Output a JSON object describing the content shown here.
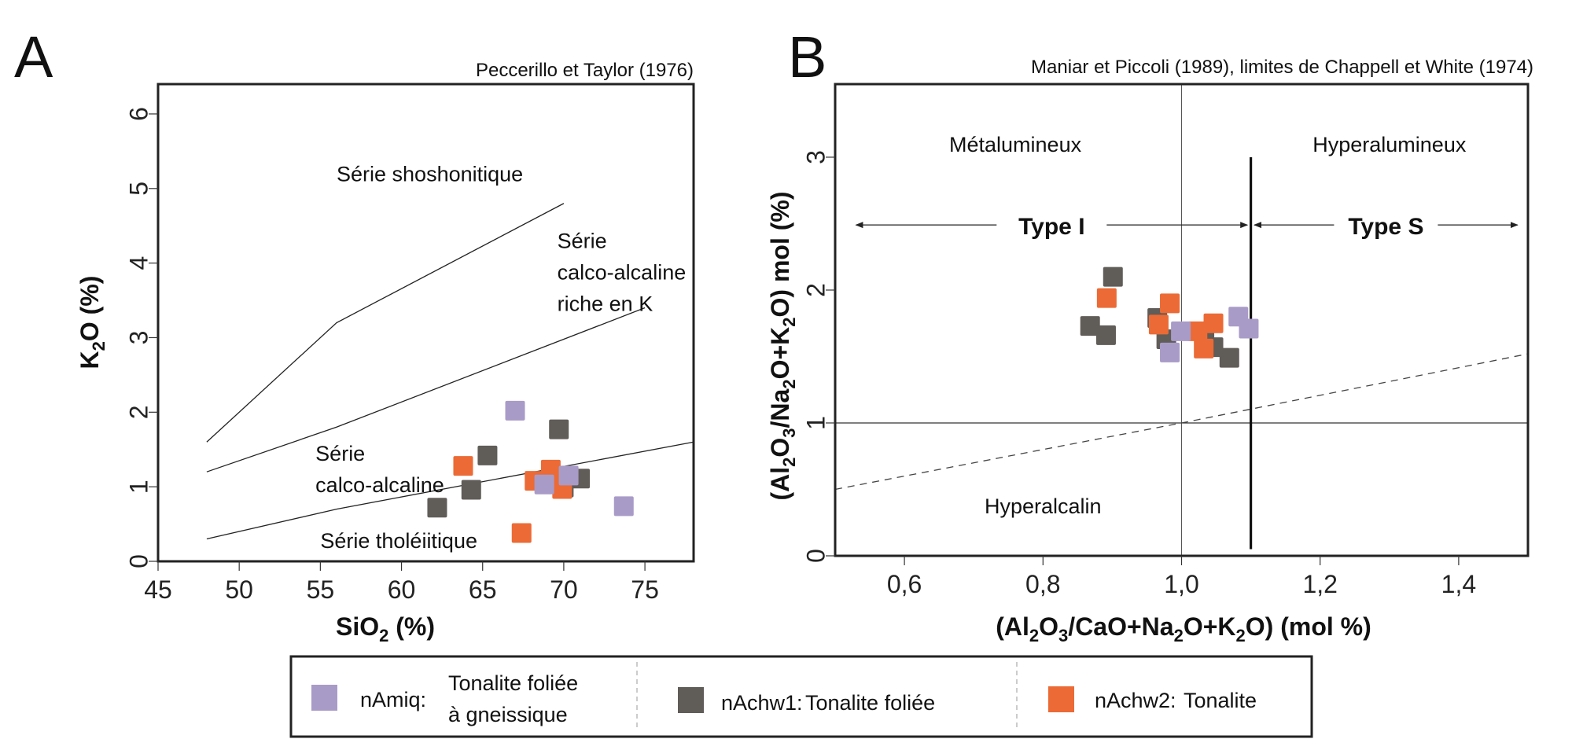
{
  "legend": {
    "items": [
      {
        "key": "nAmiq",
        "label_code": "nAmiq:",
        "label_lines": [
          "Tonalite foliée",
          "à gneissique"
        ],
        "color": "#A99BC8"
      },
      {
        "key": "nAchw1",
        "label_code": "nAchw1:",
        "label_lines": [
          "Tonalite foliée"
        ],
        "color": "#605C58"
      },
      {
        "key": "nAchw2",
        "label_code": "nAchw2:",
        "label_lines": [
          "Tonalite"
        ],
        "color": "#EC6A35"
      }
    ]
  },
  "chart_data": [
    {
      "panel": "A",
      "type": "scatter",
      "title": "Peccerillo et Taylor (1976)",
      "xlabel": "SiO2 (%)",
      "ylabel": "K2O (%)",
      "xlim": [
        45,
        78
      ],
      "ylim": [
        0,
        6.4
      ],
      "xticks": [
        45,
        50,
        55,
        60,
        65,
        70,
        75
      ],
      "yticks": [
        0,
        1,
        2,
        3,
        4,
        5,
        6
      ],
      "grid": false,
      "boundaries": [
        {
          "name": "shoshonitic-boundary",
          "points": [
            [
              48,
              1.6
            ],
            [
              56,
              3.2
            ],
            [
              70,
              4.8
            ]
          ]
        },
        {
          "name": "high-k-calc-alkaline-boundary",
          "points": [
            [
              48,
              1.2
            ],
            [
              56,
              1.8
            ],
            [
              75,
              3.4
            ]
          ]
        },
        {
          "name": "calc-alkaline-boundary",
          "points": [
            [
              48,
              0.3
            ],
            [
              56,
              0.7
            ],
            [
              78,
              1.6
            ]
          ]
        }
      ],
      "annotations": [
        {
          "text": [
            "Série shoshonitique"
          ],
          "x": 56,
          "y": 5.1
        },
        {
          "text": [
            "Série",
            "calco-alcaline",
            "riche en K"
          ],
          "x": 69.6,
          "y": 4.2
        },
        {
          "text": [
            "Série",
            "calco-alcaline"
          ],
          "x": 54.7,
          "y": 1.35
        },
        {
          "text": [
            "Série tholéiitique"
          ],
          "x": 55,
          "y": 0.18
        }
      ],
      "series": [
        {
          "name": "nAmiq",
          "points": [
            [
              67.0,
              2.02
            ],
            [
              73.7,
              0.74
            ],
            [
              68.8,
              1.03
            ],
            [
              70.3,
              1.15
            ]
          ]
        },
        {
          "name": "nAchw1",
          "points": [
            [
              69.7,
              1.77
            ],
            [
              65.3,
              1.42
            ],
            [
              64.3,
              0.96
            ],
            [
              62.2,
              0.72
            ],
            [
              71.0,
              1.11
            ],
            [
              70.0,
              0.99
            ],
            [
              69.6,
              1.09
            ]
          ]
        },
        {
          "name": "nAchw2",
          "points": [
            [
              63.8,
              1.28
            ],
            [
              67.4,
              0.38
            ],
            [
              69.2,
              1.23
            ],
            [
              68.2,
              1.08
            ],
            [
              69.9,
              0.97
            ]
          ]
        }
      ]
    },
    {
      "panel": "B",
      "type": "scatter",
      "title": "Maniar et Piccoli (1989), limites de Chappell et White (1974)",
      "xlabel": "(Al2O3/CaO+Na2O+K2O) (mol %)",
      "ylabel": "(Al2O3/Na2O+K2O) mol (%)",
      "xlim": [
        0.5,
        1.5
      ],
      "ylim": [
        0,
        3.55
      ],
      "xticks": [
        0.6,
        0.8,
        1.0,
        1.2,
        1.4
      ],
      "xtick_labels": [
        "0,6",
        "0,8",
        "1,0",
        "1,2",
        "1,4"
      ],
      "yticks": [
        0,
        1,
        2,
        3
      ],
      "grid": false,
      "reference_lines": [
        {
          "name": "x-equals-1-line",
          "kind": "vertical",
          "x": 1.0,
          "style": "thin"
        },
        {
          "name": "y-equals-1-line",
          "kind": "horizontal",
          "y": 1.0,
          "style": "thin"
        },
        {
          "name": "type-i-s-boundary",
          "kind": "vertical",
          "x": 1.1,
          "y_range": [
            0.05,
            3.0
          ],
          "style": "thick"
        },
        {
          "name": "peralkaline-boundary",
          "kind": "dashed",
          "points": [
            [
              0.5,
              0.5
            ],
            [
              1.0,
              1.0
            ],
            [
              1.5,
              1.52
            ]
          ]
        }
      ],
      "annotations": [
        {
          "text": "Métalumineux",
          "x": 0.76,
          "y": 3.1,
          "bold": false
        },
        {
          "text": "Hyperalumineux",
          "x": 1.3,
          "y": 3.1,
          "bold": false
        },
        {
          "text": "Type I",
          "x": 0.8,
          "y": 2.48,
          "bold": true
        },
        {
          "text": "Type S",
          "x": 1.3,
          "y": 2.48,
          "bold": true
        },
        {
          "text": "Hyperalcalin",
          "x": 0.8,
          "y": 0.38,
          "bold": false
        }
      ],
      "arrows": [
        {
          "name": "type-i-arrow",
          "from": 0.53,
          "to": 1.095,
          "y": 2.49,
          "label": "Type I"
        },
        {
          "name": "type-s-arrow",
          "from": 1.105,
          "to": 1.485,
          "y": 2.49,
          "label": "Type S"
        }
      ],
      "series": [
        {
          "name": "nAmiq",
          "points": [
            [
              0.999,
              1.69
            ],
            [
              0.983,
              1.53
            ],
            [
              1.082,
              1.8
            ],
            [
              1.097,
              1.71
            ]
          ]
        },
        {
          "name": "nAchw1",
          "points": [
            [
              0.901,
              2.1
            ],
            [
              0.868,
              1.73
            ],
            [
              0.891,
              1.66
            ],
            [
              0.965,
              1.79
            ],
            [
              0.978,
              1.63
            ],
            [
              1.033,
              1.61
            ],
            [
              1.046,
              1.57
            ],
            [
              1.069,
              1.49
            ]
          ]
        },
        {
          "name": "nAchw2",
          "points": [
            [
              0.892,
              1.94
            ],
            [
              0.983,
              1.9
            ],
            [
              0.967,
              1.74
            ],
            [
              1.023,
              1.69
            ],
            [
              1.046,
              1.75
            ],
            [
              1.032,
              1.56
            ]
          ]
        }
      ]
    }
  ],
  "panels": {
    "A": {
      "letter": "A",
      "source": "Peccerillo et Taylor (1976)"
    },
    "B": {
      "letter": "B",
      "source": "Maniar et Piccoli (1989), limites de Chappell et White (1974)"
    }
  }
}
